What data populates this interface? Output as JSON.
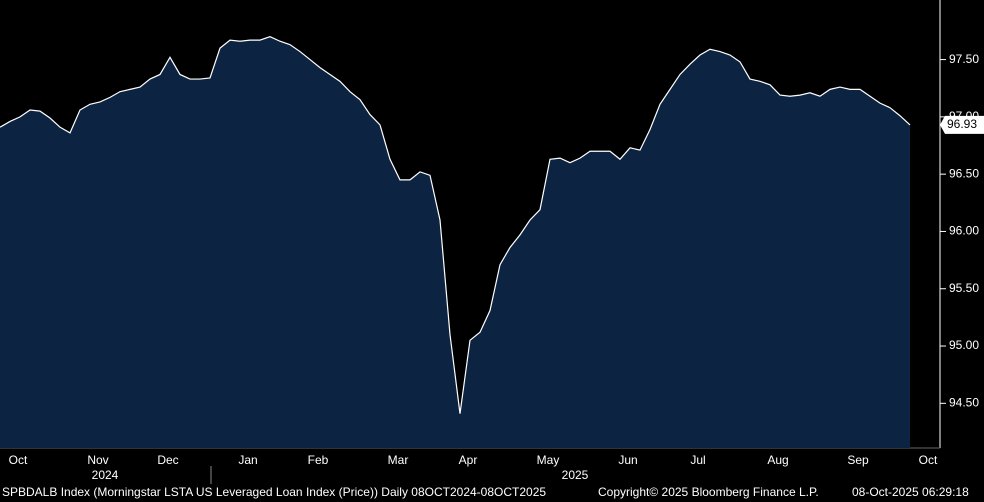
{
  "chart_data": {
    "type": "area",
    "categories": [
      null,
      null,
      "Oct",
      null,
      null,
      null,
      null,
      null,
      null,
      null,
      "Nov",
      null,
      null,
      null,
      null,
      null,
      null,
      "Dec",
      null,
      null,
      null,
      null,
      null,
      null,
      null,
      "Jan",
      null,
      null,
      null,
      null,
      null,
      null,
      "Feb",
      null,
      null,
      null,
      null,
      null,
      null,
      null,
      "Mar",
      null,
      null,
      null,
      null,
      null,
      null,
      "Apr",
      null,
      null,
      null,
      null,
      null,
      null,
      null,
      "May",
      null,
      null,
      null,
      null,
      null,
      null,
      null,
      "Jun",
      null,
      null,
      null,
      null,
      null,
      null,
      "Jul",
      null,
      null,
      null,
      null,
      null,
      null,
      null,
      "Aug",
      null,
      null,
      null,
      null,
      null,
      null,
      null,
      "Sep",
      null,
      null,
      null,
      null,
      null,
      null,
      "Oct"
    ],
    "year_labels": [
      "2024",
      "2025"
    ],
    "values": [
      96.91,
      96.96,
      97.0,
      97.06,
      97.05,
      96.99,
      96.91,
      96.86,
      97.06,
      97.11,
      97.13,
      97.17,
      97.22,
      97.24,
      97.26,
      97.33,
      97.37,
      97.52,
      97.37,
      97.33,
      97.33,
      97.34,
      97.6,
      97.67,
      97.66,
      97.67,
      97.67,
      97.7,
      97.66,
      97.63,
      97.57,
      97.5,
      97.43,
      97.37,
      97.31,
      97.22,
      97.15,
      97.02,
      96.93,
      96.63,
      96.45,
      96.45,
      96.52,
      96.49,
      96.1,
      95.1,
      94.41,
      95.05,
      95.12,
      95.31,
      95.71,
      95.86,
      95.97,
      96.1,
      96.19,
      96.63,
      96.64,
      96.6,
      96.64,
      96.7,
      96.7,
      96.7,
      96.63,
      96.73,
      96.71,
      96.89,
      97.11,
      97.24,
      97.37,
      97.46,
      97.54,
      97.59,
      97.57,
      97.54,
      97.48,
      97.33,
      97.31,
      97.28,
      97.19,
      97.18,
      97.19,
      97.21,
      97.18,
      97.24,
      97.26,
      97.24,
      97.24,
      97.18,
      97.12,
      97.08,
      97.01,
      96.93,
      null,
      null
    ],
    "color": "#0d2342",
    "line_color": "#ffffff",
    "ylim": [
      94.11,
      98.02
    ],
    "yticks": [
      {
        "value": 94.5,
        "label": "94.50"
      },
      {
        "value": 95.0,
        "label": "95.00"
      },
      {
        "value": 95.5,
        "label": "95.50"
      },
      {
        "value": 96.0,
        "label": "96.00"
      },
      {
        "value": 96.5,
        "label": "96.50"
      },
      {
        "value": 97.0,
        "label": "97.00"
      },
      {
        "value": 97.5,
        "label": "97.50"
      }
    ],
    "source": "SPBDALB Index (Morningstar LSTA US Leveraged Loan Index (Price)) Daily 08OCT2024-08OCT2025",
    "copyright": "Copyright© 2025 Bloomberg Finance L.P.",
    "timestamp": "08-Oct-2025 06:29:18"
  }
}
